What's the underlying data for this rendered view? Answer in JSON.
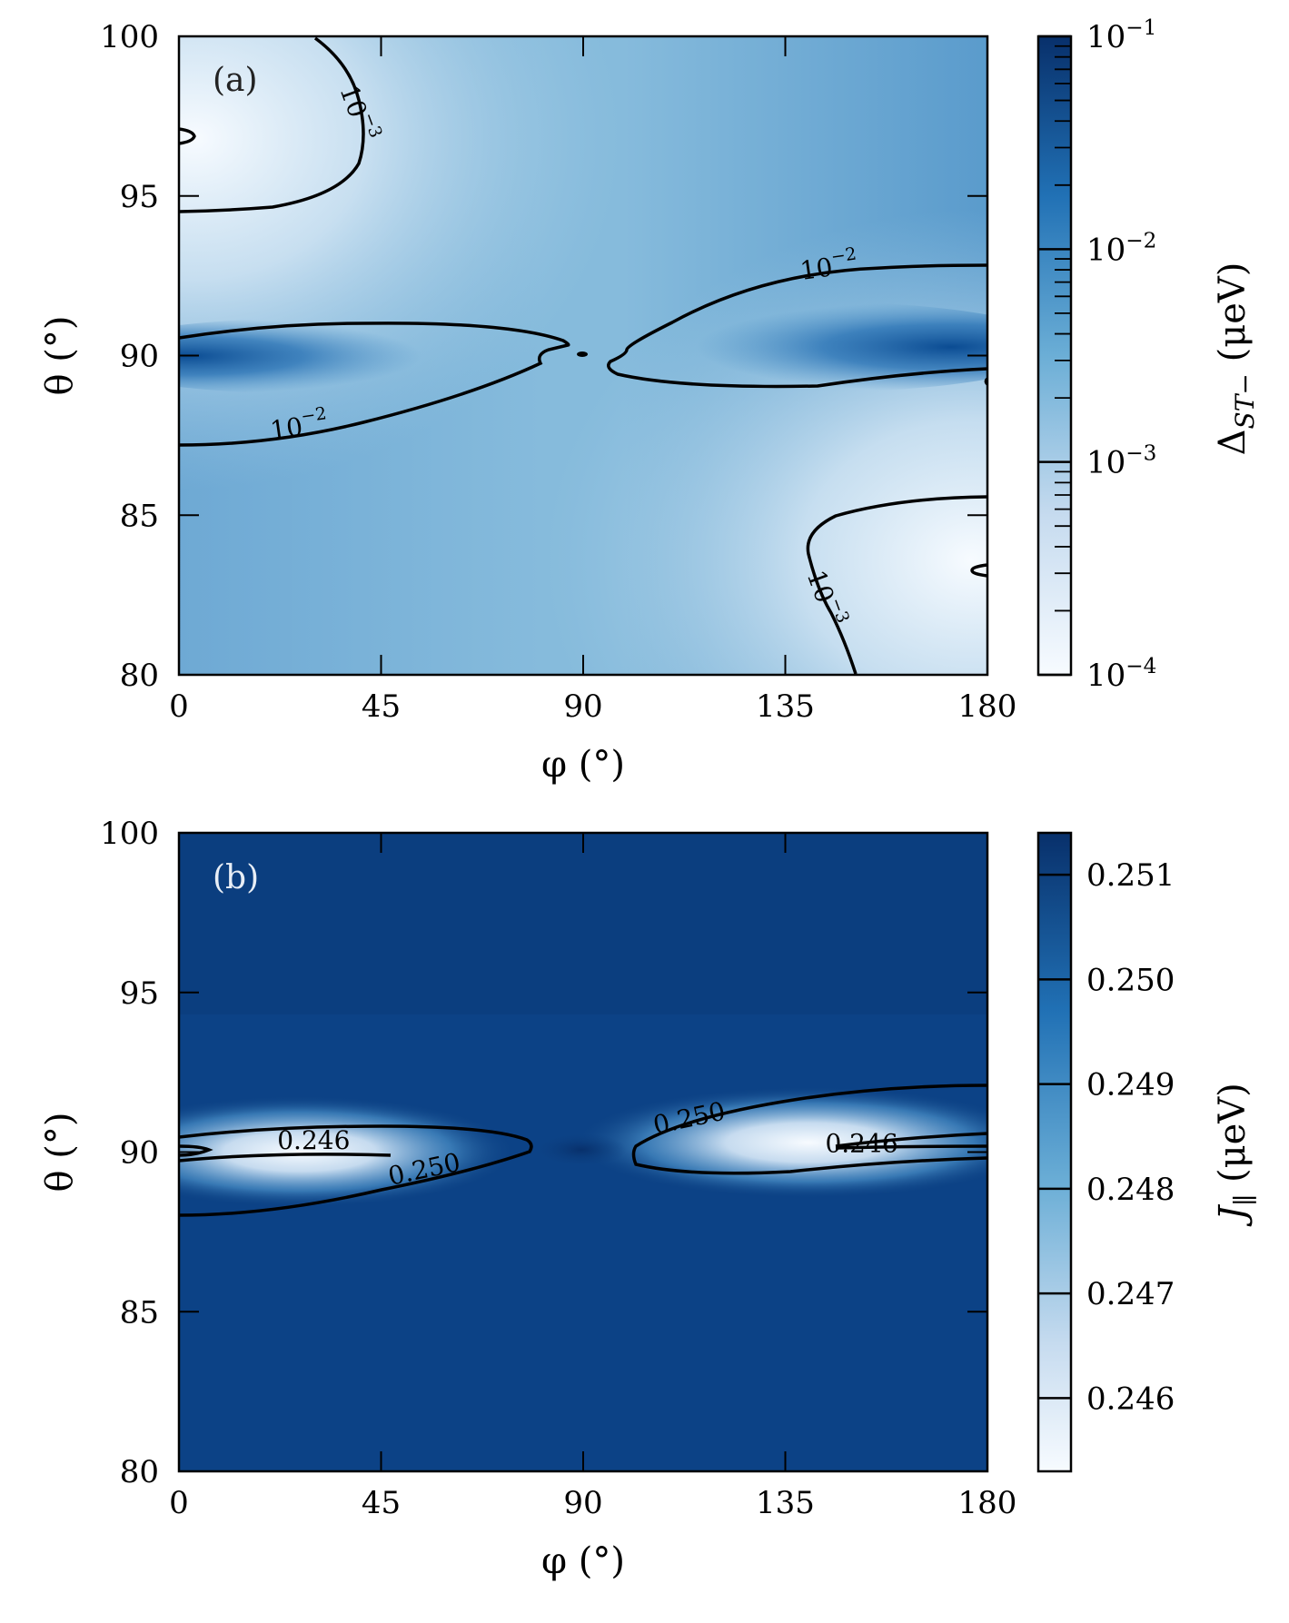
{
  "chart_data": [
    {
      "type": "heatmap",
      "panel_label": "(a)",
      "xlabel": "φ (°)",
      "ylabel": "θ (°)",
      "xlim": [
        0,
        180
      ],
      "ylim": [
        80,
        100
      ],
      "xticks": [
        0,
        45,
        90,
        135,
        180
      ],
      "yticks": [
        80,
        85,
        90,
        95,
        100
      ],
      "colorbar": {
        "label": "Δ_ST− (μeV)",
        "scale": "log",
        "range": [
          0.0001,
          0.1
        ],
        "tick_labels": [
          "10^−4",
          "10^−3",
          "10^−2",
          "10^−1"
        ],
        "tick_values": [
          0.0001,
          0.001,
          0.01,
          0.1
        ],
        "colormap": "Blues"
      },
      "contour_labels": [
        {
          "text": "10^−3",
          "phi": 38,
          "theta": 97.5
        },
        {
          "text": "10^−2",
          "phi": 27,
          "theta": 87.5
        },
        {
          "text": "10^−2",
          "phi": 145,
          "theta": 92.5
        },
        {
          "text": "10^−3",
          "phi": 142,
          "theta": 82.3
        }
      ],
      "grid": false
    },
    {
      "type": "heatmap",
      "panel_label": "(b)",
      "xlabel": "φ (°)",
      "ylabel": "θ (°)",
      "xlim": [
        0,
        180
      ],
      "ylim": [
        80,
        100
      ],
      "xticks": [
        0,
        45,
        90,
        135,
        180
      ],
      "yticks": [
        80,
        85,
        90,
        95,
        100
      ],
      "colorbar": {
        "label": "J_∥ (μeV)",
        "scale": "linear",
        "range": [
          0.2453,
          0.2514
        ],
        "tick_labels": [
          "0.246",
          "0.247",
          "0.248",
          "0.249",
          "0.250",
          "0.251"
        ],
        "tick_values": [
          0.246,
          0.247,
          0.248,
          0.249,
          0.25,
          0.251
        ],
        "colormap": "Blues"
      },
      "contour_labels": [
        {
          "text": "0.246",
          "phi": 30,
          "theta": 90.1
        },
        {
          "text": "0.250",
          "phi": 55,
          "theta": 89.2
        },
        {
          "text": "0.250",
          "phi": 114,
          "theta": 90.8
        },
        {
          "text": "0.246",
          "phi": 152,
          "theta": 90.0
        }
      ],
      "grid": false
    }
  ],
  "colors": {
    "cmap_light": "#f7fbff",
    "cmap_mid": "#6baed6",
    "cmap_dark": "#08306b",
    "contour": "#000000"
  }
}
